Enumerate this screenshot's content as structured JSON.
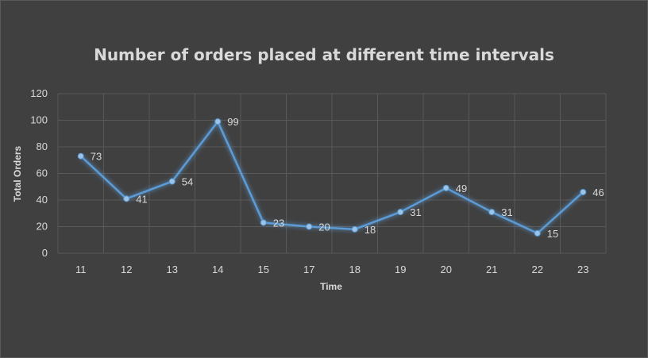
{
  "chart_data": {
    "type": "line",
    "title": "Number of orders placed at different time intervals",
    "xlabel": "Time",
    "ylabel": "Total Orders",
    "categories": [
      "11",
      "12",
      "13",
      "14",
      "15",
      "17",
      "18",
      "19",
      "20",
      "21",
      "22",
      "23"
    ],
    "series": [
      {
        "values": [
          73,
          41,
          54,
          99,
          23,
          20,
          18,
          31,
          49,
          31,
          15,
          46
        ]
      }
    ],
    "ylim": [
      0,
      120
    ],
    "yticks": [
      0,
      20,
      40,
      60,
      80,
      100,
      120
    ],
    "grid": true,
    "data_labels": true,
    "legend": "none",
    "colors": {
      "background": "#404040",
      "line": "#5b9bd5",
      "grid": "#595959",
      "text": "#d9d9d9"
    }
  }
}
